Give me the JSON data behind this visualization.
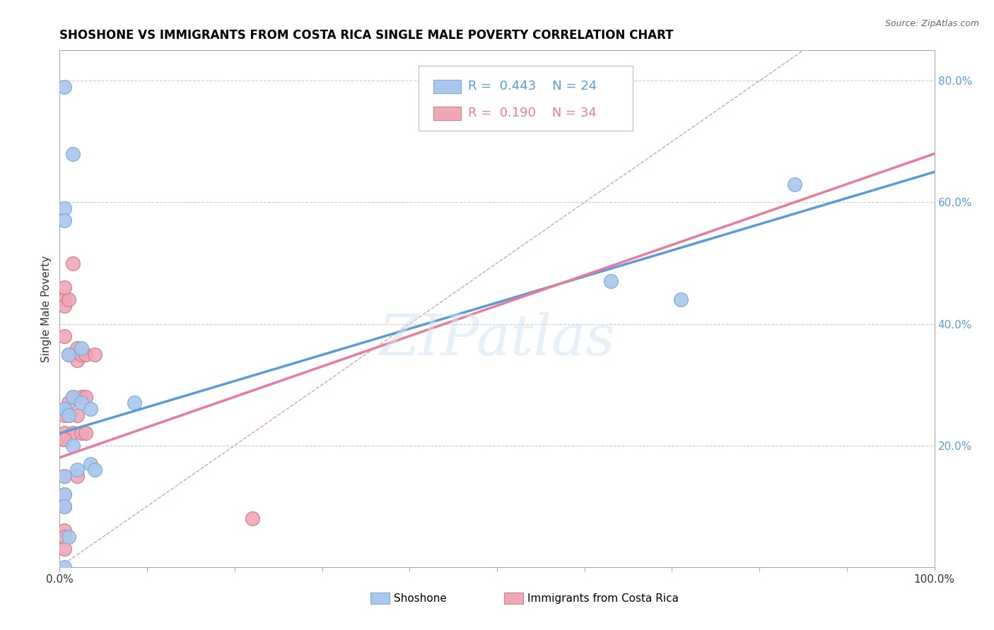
{
  "title": "SHOSHONE VS IMMIGRANTS FROM COSTA RICA SINGLE MALE POVERTY CORRELATION CHART",
  "source": "Source: ZipAtlas.com",
  "ylabel": "Single Male Poverty",
  "xlim": [
    0,
    1.0
  ],
  "ylim": [
    0,
    0.85
  ],
  "xticks": [
    0.0,
    0.1,
    0.2,
    0.3,
    0.4,
    0.5,
    0.6,
    0.7,
    0.8,
    0.9,
    1.0
  ],
  "xticklabels": [
    "0.0%",
    "",
    "",
    "",
    "",
    "",
    "",
    "",
    "",
    "",
    "100.0%"
  ],
  "yticks_right": [
    0.2,
    0.4,
    0.6,
    0.8
  ],
  "yticklabels_right": [
    "20.0%",
    "40.0%",
    "60.0%",
    "80.0%"
  ],
  "shoshone_color": "#a8c8f0",
  "shoshone_edge": "#7aafd4",
  "costa_rica_color": "#f0a8b8",
  "costa_rica_edge": "#d47a8a",
  "R_shoshone": 0.443,
  "N_shoshone": 24,
  "R_costa_rica": 0.19,
  "N_costa_rica": 34,
  "shoshone_x": [
    0.005,
    0.015,
    0.005,
    0.005,
    0.025,
    0.01,
    0.015,
    0.025,
    0.005,
    0.035,
    0.01,
    0.015,
    0.035,
    0.04,
    0.02,
    0.005,
    0.005,
    0.005,
    0.01,
    0.63,
    0.71,
    0.84,
    0.005,
    0.085
  ],
  "shoshone_y": [
    0.79,
    0.68,
    0.59,
    0.57,
    0.36,
    0.35,
    0.28,
    0.27,
    0.26,
    0.26,
    0.25,
    0.2,
    0.17,
    0.16,
    0.16,
    0.15,
    0.12,
    0.1,
    0.05,
    0.47,
    0.44,
    0.63,
    0.0,
    0.27
  ],
  "costa_rica_x": [
    0.005,
    0.005,
    0.005,
    0.005,
    0.005,
    0.005,
    0.005,
    0.005,
    0.005,
    0.01,
    0.01,
    0.01,
    0.01,
    0.015,
    0.015,
    0.015,
    0.015,
    0.02,
    0.02,
    0.02,
    0.02,
    0.025,
    0.025,
    0.025,
    0.03,
    0.03,
    0.03,
    0.04,
    0.22,
    0.005,
    0.005,
    0.005,
    0.005,
    0.005
  ],
  "costa_rica_y": [
    0.44,
    0.43,
    0.38,
    0.25,
    0.22,
    0.21,
    0.15,
    0.12,
    0.06,
    0.44,
    0.35,
    0.27,
    0.25,
    0.5,
    0.35,
    0.28,
    0.22,
    0.36,
    0.34,
    0.25,
    0.15,
    0.35,
    0.28,
    0.22,
    0.35,
    0.28,
    0.22,
    0.35,
    0.08,
    0.46,
    0.21,
    0.1,
    0.05,
    0.03
  ],
  "watermark_text": "ZIPatlas",
  "shoshone_line": [
    0.0,
    1.0
  ],
  "shoshone_line_y": [
    0.22,
    0.65
  ],
  "costa_rica_line": [
    0.0,
    1.0
  ],
  "costa_rica_line_y": [
    0.18,
    0.68
  ]
}
